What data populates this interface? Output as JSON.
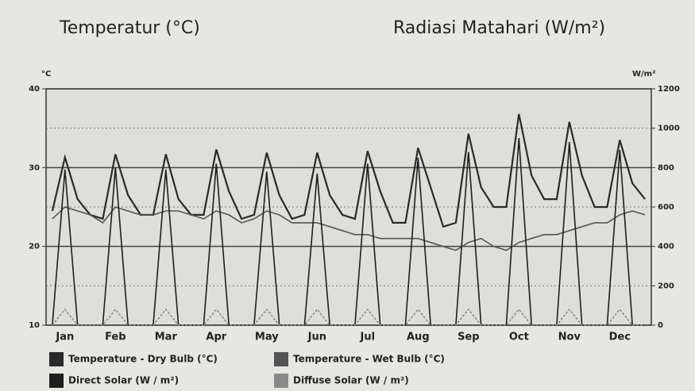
{
  "chart_data": {
    "type": "line",
    "title": "Temperatur (°C)",
    "title2": "Radiasi Matahari (W/m²)",
    "y_unit": "°C",
    "y2_unit": "W/m²",
    "categories": [
      null,
      "Jan",
      null,
      null,
      null,
      "Feb",
      null,
      null,
      null,
      "Mar",
      null,
      null,
      null,
      "Apr",
      null,
      null,
      null,
      "May",
      null,
      null,
      null,
      "Jun",
      null,
      null,
      null,
      "Jul",
      null,
      null,
      null,
      "Aug",
      null,
      null,
      null,
      "Sep",
      null,
      null,
      null,
      "Oct",
      null,
      null,
      null,
      "Nov",
      null,
      null,
      null,
      "Dec",
      null,
      null
    ],
    "ylim": [
      10,
      40
    ],
    "yticks": [
      10,
      20,
      30,
      40
    ],
    "y2lim": [
      0,
      1200
    ],
    "y2ticks": [
      0,
      200,
      400,
      600,
      800,
      1000,
      1200
    ],
    "grid": true,
    "series": [
      {
        "name": "Temperature - Dry Bulb (°C)",
        "color": "#2a2a2a",
        "values": [
          24.5,
          31.3,
          26,
          24,
          23.5,
          31.7,
          26.5,
          24,
          24,
          31.7,
          26,
          24,
          24,
          32.3,
          27,
          23.5,
          24,
          31.9,
          26.5,
          23.5,
          24,
          31.9,
          26.5,
          24,
          23.5,
          32.1,
          27,
          23,
          23,
          32.5,
          27.5,
          22.5,
          23,
          34.3,
          27.5,
          25,
          25,
          36.8,
          29,
          26,
          26,
          35.8,
          29,
          25,
          25,
          33.5,
          28,
          26
        ]
      },
      {
        "name": "Temperature - Wet Bulb (°C)",
        "color": "#555555",
        "values": [
          23.5,
          25,
          24.5,
          24,
          23,
          25,
          24.5,
          24,
          24,
          24.5,
          24.5,
          24,
          23.5,
          24.5,
          24,
          23,
          23.5,
          24.5,
          24,
          23,
          23,
          23,
          22.5,
          22,
          21.5,
          21.5,
          21,
          21,
          21,
          21,
          20.5,
          20,
          19.5,
          20.5,
          21,
          20,
          19.5,
          20.5,
          21,
          21.5,
          21.5,
          22,
          22.5,
          23,
          23,
          24,
          24.5,
          24
        ]
      },
      {
        "name": "Direct Solar (W / m²)",
        "color": "#1e1e1e",
        "axis": "y2",
        "values": [
          0,
          790,
          0,
          0,
          0,
          800,
          0,
          0,
          0,
          790,
          0,
          0,
          0,
          820,
          0,
          0,
          0,
          780,
          0,
          0,
          0,
          770,
          0,
          0,
          0,
          820,
          0,
          0,
          0,
          850,
          0,
          0,
          0,
          880,
          0,
          0,
          0,
          950,
          0,
          0,
          0,
          930,
          0,
          0,
          0,
          890,
          0,
          0
        ]
      },
      {
        "name": "Diffuse Solar (W / m²)",
        "color": "#8a8a8a",
        "axis": "y2",
        "values": [
          0,
          80,
          0,
          0,
          0,
          80,
          0,
          0,
          0,
          80,
          0,
          0,
          0,
          80,
          0,
          0,
          0,
          80,
          0,
          0,
          0,
          80,
          0,
          0,
          0,
          80,
          0,
          0,
          0,
          80,
          0,
          0,
          0,
          80,
          0,
          0,
          0,
          80,
          0,
          0,
          0,
          80,
          0,
          0,
          0,
          80,
          0,
          0
        ]
      }
    ]
  }
}
